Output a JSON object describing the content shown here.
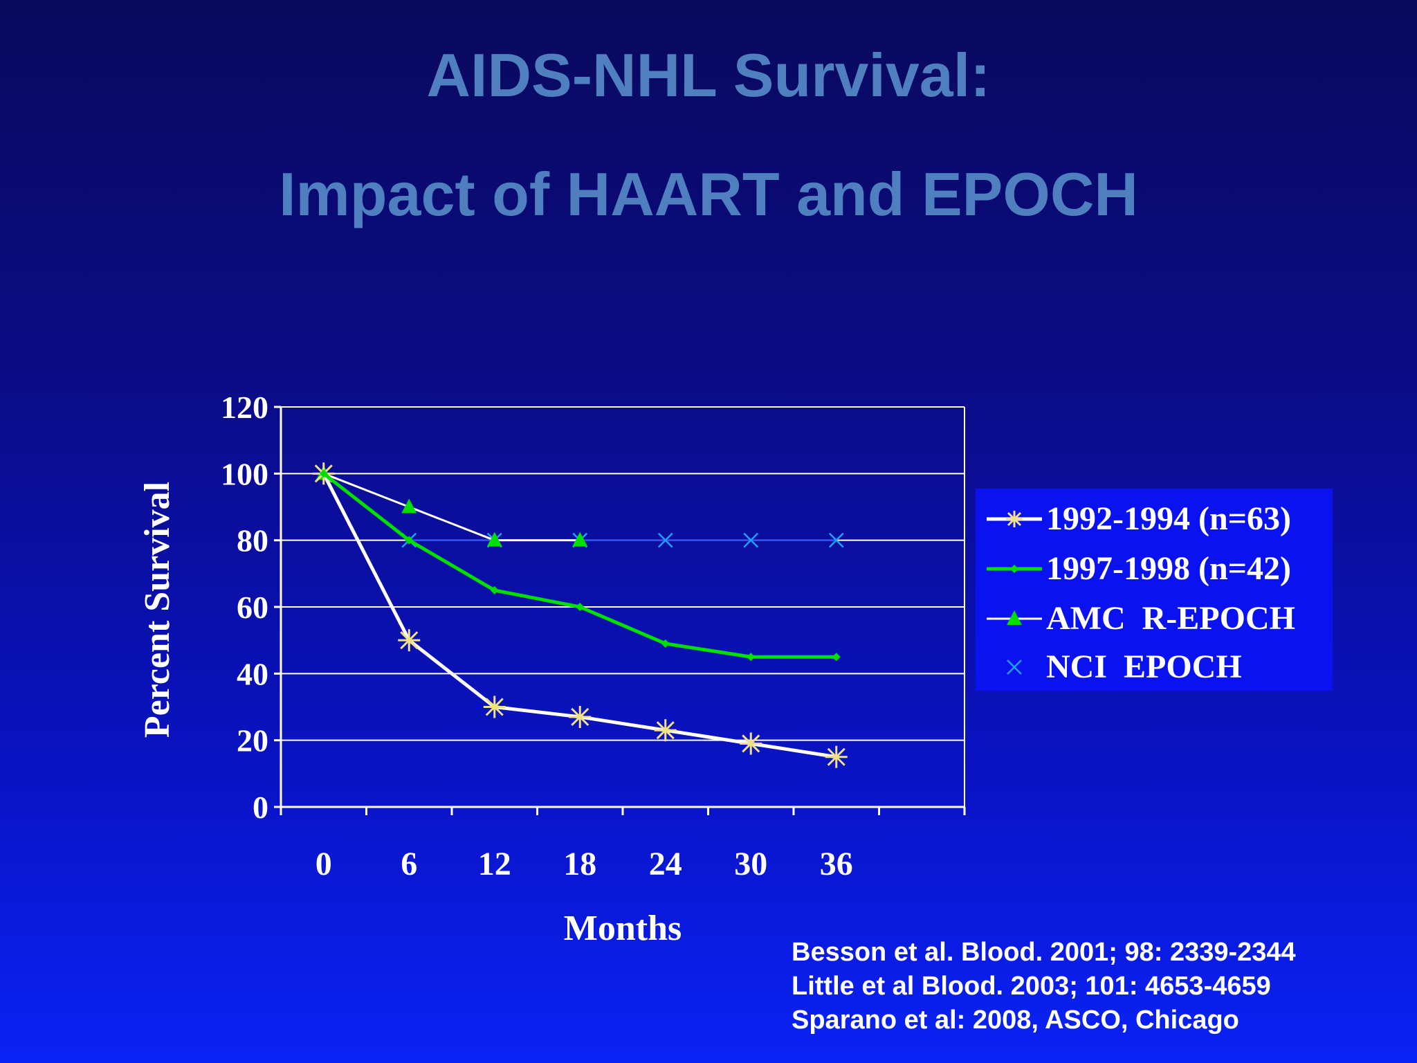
{
  "slide": {
    "title_line1": "AIDS-NHL Survival:",
    "title_line2": "Impact of HAART and EPOCH"
  },
  "chart_data": {
    "type": "line",
    "title": "AIDS-NHL Survival: Impact of HAART and EPOCH",
    "xlabel": "Months",
    "ylabel": "Percent Survival",
    "categories": [
      "0",
      "6",
      "12",
      "18",
      "24",
      "30",
      "36"
    ],
    "ylim": [
      0,
      120
    ],
    "yticks": [
      0,
      20,
      40,
      60,
      80,
      100,
      120
    ],
    "grid": true,
    "legend_position": "right",
    "series": [
      {
        "name": "1992-1994 (n=63)",
        "marker": "asterisk",
        "line_color": "#ffffff",
        "marker_color": "#f0e08a",
        "values": [
          100,
          50,
          30,
          27,
          23,
          19,
          15
        ]
      },
      {
        "name": "1997-1998 (n=42)",
        "marker": "diamond",
        "line_color": "#00e000",
        "marker_color": "#00e000",
        "values": [
          100,
          80,
          65,
          60,
          49,
          45,
          45
        ]
      },
      {
        "name": "AMC  R-EPOCH",
        "marker": "triangle",
        "line_color": "#ffffff",
        "marker_color": "#00e000",
        "values": [
          100,
          90,
          80,
          80,
          null,
          null,
          null
        ]
      },
      {
        "name": "NCI  EPOCH",
        "marker": "x",
        "line_color": "#2a50ff",
        "marker_color": "#1ea0ff",
        "values": [
          100,
          80,
          80,
          80,
          80,
          80,
          80
        ]
      }
    ]
  },
  "references": [
    "Besson et al. Blood. 2001; 98: 2339-2344",
    "Little et al Blood. 2003; 101: 4653-4659",
    "Sparano et al: 2008, ASCO, Chicago"
  ]
}
